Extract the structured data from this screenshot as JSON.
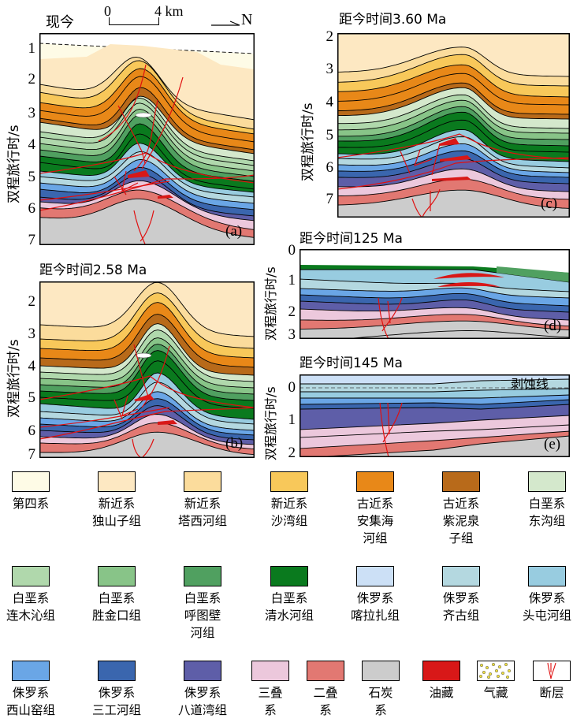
{
  "header": {
    "present_label": "现今",
    "scale_start": "0",
    "scale_end": "4 km",
    "north_label": "N"
  },
  "y_axis_label": "双程旅行时/s",
  "panels": [
    {
      "id": "a",
      "title": "现今",
      "letter": "(a)",
      "ticks": [
        "1",
        "2",
        "3",
        "4",
        "5",
        "6",
        "7"
      ]
    },
    {
      "id": "b",
      "title": "距今时间2.58 Ma",
      "letter": "(b)",
      "ticks": [
        "2",
        "3",
        "4",
        "5",
        "6",
        "7"
      ]
    },
    {
      "id": "c",
      "title": "距今时间3.60 Ma",
      "letter": "(c)",
      "ticks": [
        "2",
        "3",
        "4",
        "5",
        "6",
        "7"
      ]
    },
    {
      "id": "d",
      "title": "距今时间125 Ma",
      "letter": "(d)",
      "ticks": [
        "0",
        "1",
        "2",
        "3"
      ]
    },
    {
      "id": "e",
      "title": "距今时间145 Ma",
      "letter": "(e)",
      "ticks": [
        "0",
        "1",
        "2"
      ],
      "annotation": "剥蚀线"
    }
  ],
  "colors": {
    "quaternary": "#fefbe6",
    "dushanzi": "#fde8c2",
    "taxihe": "#fbdc9c",
    "shawan": "#f8c85a",
    "anjihaihe": "#e88818",
    "ziniquanzi": "#b86a1a",
    "donggou": "#d4e8cc",
    "lianmuqin": "#b0d8ac",
    "shengjinkou": "#88c488",
    "hutubihe": "#50a060",
    "qingshuihe": "#0a7a1e",
    "kalazha": "#cce0f6",
    "qigu": "#b4d8e0",
    "toutunhe": "#98cce0",
    "xishanyao": "#6aa6e6",
    "sangonghe": "#3a66ae",
    "badaowan": "#5e5ea8",
    "triassic": "#ecc8dc",
    "permian": "#e27872",
    "carboniferous": "#cccccc",
    "oil": "#d81818",
    "fault": "#e01010"
  },
  "legend": [
    {
      "key": "quaternary",
      "label": "第四系"
    },
    {
      "key": "dushanzi",
      "label": "新近系\n独山子组"
    },
    {
      "key": "taxihe",
      "label": "新近系\n塔西河组"
    },
    {
      "key": "shawan",
      "label": "新近系\n沙湾组"
    },
    {
      "key": "anjihaihe",
      "label": "古近系\n安集海\n河组"
    },
    {
      "key": "ziniquanzi",
      "label": "古近系\n紫泥泉\n子组"
    },
    {
      "key": "donggou",
      "label": "白垩系\n东沟组"
    },
    {
      "key": "lianmuqin",
      "label": "白垩系\n连木沁组"
    },
    {
      "key": "shengjinkou",
      "label": "白垩系\n胜金口组"
    },
    {
      "key": "hutubihe",
      "label": "白垩系\n呼图壁\n河组"
    },
    {
      "key": "qingshuihe",
      "label": "白垩系\n清水河组"
    },
    {
      "key": "kalazha",
      "label": "侏罗系\n喀拉扎组"
    },
    {
      "key": "qigu",
      "label": "侏罗系\n齐古组"
    },
    {
      "key": "toutunhe",
      "label": "侏罗系\n头屯河组"
    },
    {
      "key": "xishanyao",
      "label": "侏罗系\n西山窑组"
    },
    {
      "key": "sangonghe",
      "label": "侏罗系\n三工河组"
    },
    {
      "key": "badaowan",
      "label": "侏罗系\n八道湾组"
    },
    {
      "key": "triassic",
      "label": "三叠\n系"
    },
    {
      "key": "permian",
      "label": "二叠\n系"
    },
    {
      "key": "carboniferous",
      "label": "石炭\n系"
    },
    {
      "key": "oil",
      "label": "油藏"
    },
    {
      "key": "gas",
      "label": "气藏"
    },
    {
      "key": "fault",
      "label": "断层"
    }
  ]
}
